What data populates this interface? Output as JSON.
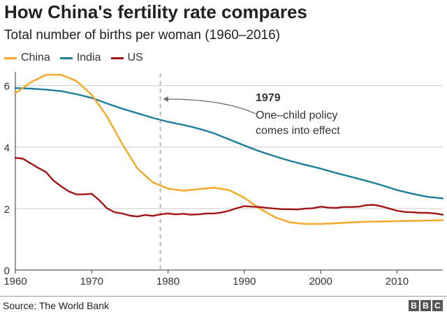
{
  "title": "How China's fertility rate compares",
  "subtitle": "Total number of births per woman (1960–2016)",
  "source": "Source: The World Bank",
  "logo": [
    "B",
    "B",
    "C"
  ],
  "legend": [
    {
      "name": "China",
      "color": "#f5a623"
    },
    {
      "name": "India",
      "color": "#1b7f9b"
    },
    {
      "name": "US",
      "color": "#a31515"
    }
  ],
  "annotation": {
    "year_label": "1979",
    "line1": "One–child policy",
    "line2": "comes into effect",
    "marker_year": 1979
  },
  "chart_data": {
    "type": "line",
    "title": "How China's fertility rate compares",
    "subtitle": "Total number of births per woman (1960–2016)",
    "xlabel": "",
    "ylabel": "",
    "xlim": [
      1960,
      2016
    ],
    "ylim": [
      0,
      6.4
    ],
    "x_ticks": [
      1960,
      1970,
      1980,
      1990,
      2000,
      2010
    ],
    "y_ticks": [
      0,
      2,
      4,
      6
    ],
    "grid": "horizontal",
    "legend_position": "top-left",
    "series": [
      {
        "name": "China",
        "color": "#f5a623",
        "points": [
          [
            1960,
            5.75
          ],
          [
            1962,
            6.1
          ],
          [
            1964,
            6.35
          ],
          [
            1966,
            6.35
          ],
          [
            1968,
            6.15
          ],
          [
            1970,
            5.7
          ],
          [
            1972,
            5.0
          ],
          [
            1974,
            4.1
          ],
          [
            1976,
            3.3
          ],
          [
            1978,
            2.85
          ],
          [
            1980,
            2.65
          ],
          [
            1982,
            2.58
          ],
          [
            1984,
            2.63
          ],
          [
            1986,
            2.68
          ],
          [
            1988,
            2.6
          ],
          [
            1990,
            2.35
          ],
          [
            1992,
            2.0
          ],
          [
            1994,
            1.72
          ],
          [
            1996,
            1.55
          ],
          [
            1998,
            1.5
          ],
          [
            2000,
            1.5
          ],
          [
            2002,
            1.52
          ],
          [
            2004,
            1.55
          ],
          [
            2006,
            1.57
          ],
          [
            2008,
            1.58
          ],
          [
            2010,
            1.59
          ],
          [
            2012,
            1.6
          ],
          [
            2014,
            1.61
          ],
          [
            2016,
            1.62
          ]
        ]
      },
      {
        "name": "India",
        "color": "#1b7f9b",
        "points": [
          [
            1960,
            5.92
          ],
          [
            1962,
            5.9
          ],
          [
            1964,
            5.87
          ],
          [
            1966,
            5.82
          ],
          [
            1968,
            5.72
          ],
          [
            1970,
            5.6
          ],
          [
            1972,
            5.42
          ],
          [
            1974,
            5.25
          ],
          [
            1976,
            5.1
          ],
          [
            1978,
            4.95
          ],
          [
            1980,
            4.82
          ],
          [
            1982,
            4.72
          ],
          [
            1984,
            4.6
          ],
          [
            1986,
            4.45
          ],
          [
            1988,
            4.25
          ],
          [
            1990,
            4.05
          ],
          [
            1992,
            3.86
          ],
          [
            1994,
            3.7
          ],
          [
            1996,
            3.55
          ],
          [
            1998,
            3.42
          ],
          [
            2000,
            3.3
          ],
          [
            2002,
            3.16
          ],
          [
            2004,
            3.03
          ],
          [
            2006,
            2.9
          ],
          [
            2008,
            2.76
          ],
          [
            2010,
            2.6
          ],
          [
            2012,
            2.48
          ],
          [
            2014,
            2.38
          ],
          [
            2016,
            2.33
          ]
        ]
      },
      {
        "name": "US",
        "color": "#a31515",
        "points": [
          [
            1960,
            3.65
          ],
          [
            1961,
            3.62
          ],
          [
            1962,
            3.47
          ],
          [
            1963,
            3.32
          ],
          [
            1964,
            3.19
          ],
          [
            1965,
            2.91
          ],
          [
            1966,
            2.72
          ],
          [
            1967,
            2.56
          ],
          [
            1968,
            2.46
          ],
          [
            1969,
            2.46
          ],
          [
            1970,
            2.48
          ],
          [
            1971,
            2.27
          ],
          [
            1972,
            2.01
          ],
          [
            1973,
            1.88
          ],
          [
            1974,
            1.84
          ],
          [
            1975,
            1.77
          ],
          [
            1976,
            1.74
          ],
          [
            1977,
            1.79
          ],
          [
            1978,
            1.76
          ],
          [
            1979,
            1.81
          ],
          [
            1980,
            1.84
          ],
          [
            1981,
            1.81
          ],
          [
            1982,
            1.83
          ],
          [
            1983,
            1.8
          ],
          [
            1984,
            1.81
          ],
          [
            1985,
            1.84
          ],
          [
            1986,
            1.84
          ],
          [
            1987,
            1.87
          ],
          [
            1988,
            1.93
          ],
          [
            1989,
            2.01
          ],
          [
            1990,
            2.08
          ],
          [
            1991,
            2.06
          ],
          [
            1992,
            2.05
          ],
          [
            1993,
            2.02
          ],
          [
            1994,
            2.0
          ],
          [
            1995,
            1.98
          ],
          [
            1996,
            1.98
          ],
          [
            1997,
            1.97
          ],
          [
            1998,
            2.0
          ],
          [
            1999,
            2.01
          ],
          [
            2000,
            2.06
          ],
          [
            2001,
            2.03
          ],
          [
            2002,
            2.02
          ],
          [
            2003,
            2.05
          ],
          [
            2004,
            2.05
          ],
          [
            2005,
            2.06
          ],
          [
            2006,
            2.11
          ],
          [
            2007,
            2.12
          ],
          [
            2008,
            2.07
          ],
          [
            2009,
            2.0
          ],
          [
            2010,
            1.93
          ],
          [
            2011,
            1.89
          ],
          [
            2012,
            1.88
          ],
          [
            2013,
            1.86
          ],
          [
            2014,
            1.86
          ],
          [
            2015,
            1.84
          ],
          [
            2016,
            1.8
          ]
        ]
      }
    ]
  }
}
